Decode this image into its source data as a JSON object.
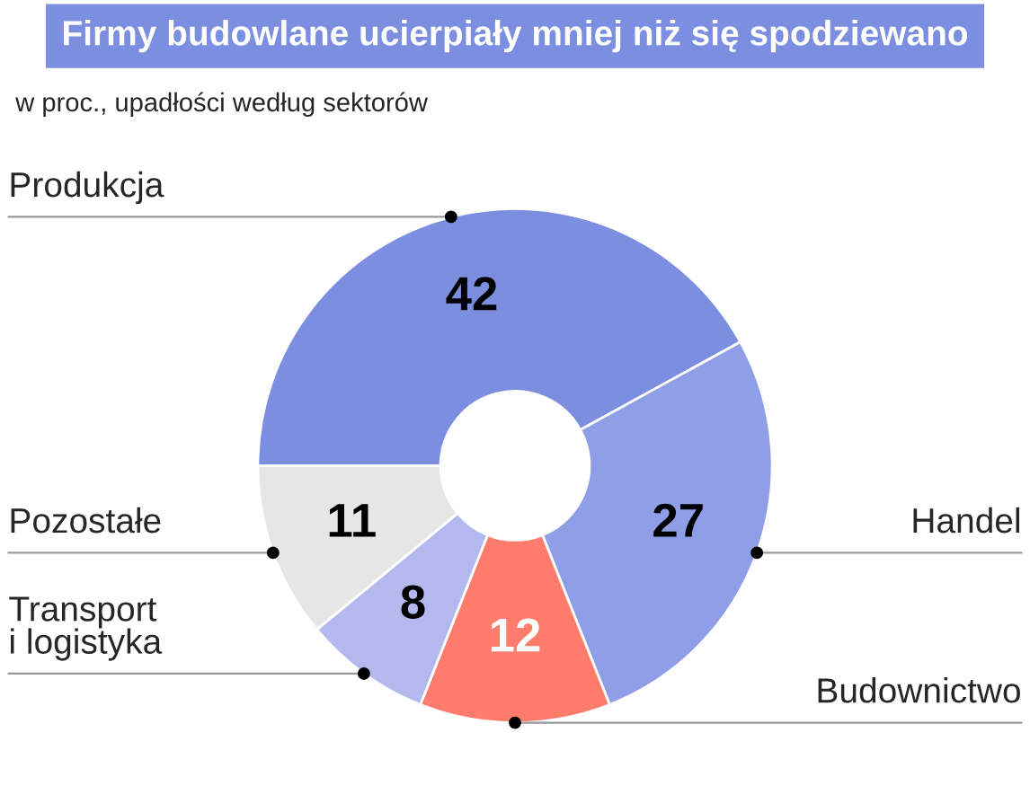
{
  "chart_data": {
    "type": "donut",
    "title": "Firmy budowlane ucierpiały mniej niż się spodziewano",
    "subtitle": "w proc., upadłości według sektorów",
    "categories": [
      "Produkcja",
      "Handel",
      "Budownictwo",
      "Transport\ni logistyka",
      "Pozostałe"
    ],
    "values": [
      42,
      27,
      12,
      8,
      11
    ],
    "colors": [
      "#7b8ee0",
      "#8f9ee6",
      "#ff7b6b",
      "#b3b9ef",
      "#e6e6e6"
    ],
    "data_labels": true,
    "legend": false
  }
}
